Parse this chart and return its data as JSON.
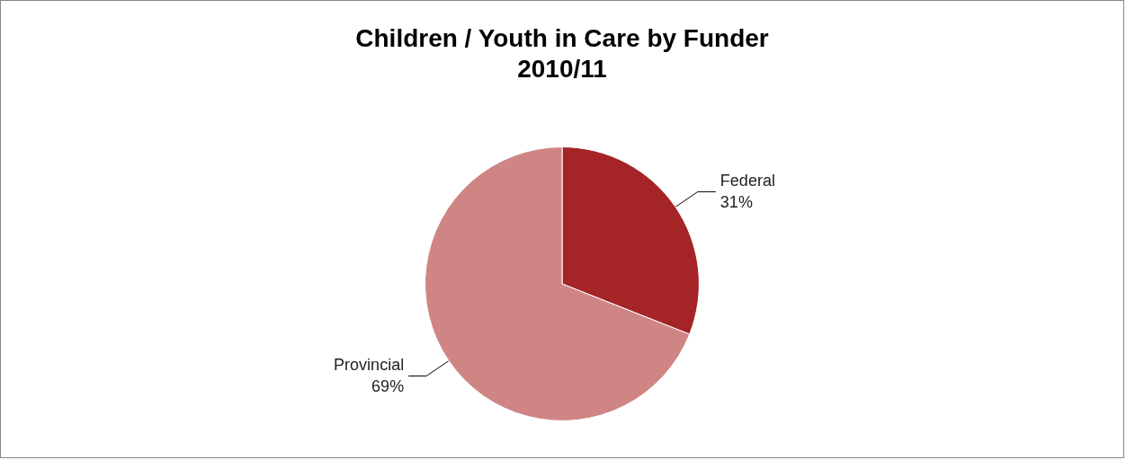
{
  "chart_data": {
    "type": "pie",
    "title": "Children / Youth in Care by Funder",
    "subtitle": "2010/11",
    "categories": [
      "Federal",
      "Provincial"
    ],
    "values": [
      31,
      69
    ],
    "colors": [
      "#a52428",
      "#d08585"
    ],
    "value_labels": [
      "31%",
      "69%"
    ],
    "legend": false
  }
}
